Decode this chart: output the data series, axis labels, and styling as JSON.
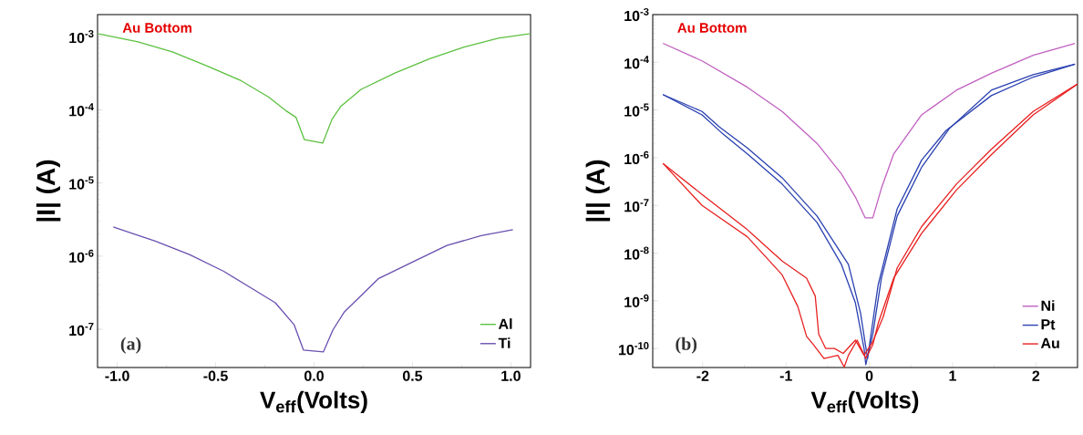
{
  "chart_data": [
    {
      "type": "line",
      "xlabel": "V$_{eff}$(Volts)",
      "ylabel": "|I| (A)",
      "log": "y",
      "legend": "bottom right",
      "grid": false,
      "marker": "none",
      "line_style": "solid",
      "xlim": [
        -1.1,
        1.1
      ],
      "ylim": [
        3e-08,
        0.002
      ],
      "xticks": [
        {
          "value": -1,
          "label": "-1.0"
        },
        -0.5,
        {
          "value": 0,
          "label": "0.0"
        },
        0.5,
        {
          "value": 1,
          "label": "1.0"
        }
      ],
      "yticks": [
        {
          "value": 1e-07,
          "label": "10$^{-7}$"
        },
        {
          "value": 1e-06,
          "label": "10$^{-6}$"
        },
        {
          "value": 1e-05,
          "label": "10$^{-5}$"
        },
        {
          "value": 0.0001,
          "label": "10$^{-4}$"
        },
        {
          "value": 0.001,
          "label": "10$^{-3}$"
        }
      ],
      "annotations": [
        "Au Bottom",
        "(a)"
      ],
      "series": [
        {
          "name": "Al",
          "color": "#5cc040",
          "x": [
            -1.099,
            -0.895,
            -0.72,
            -0.546,
            -0.371,
            -0.232,
            -0.145,
            -0.092,
            -0.049,
            0.044,
            0.091,
            0.134,
            0.239,
            0.413,
            0.588,
            0.762,
            0.936,
            1.099
          ],
          "values": [
            0.0011,
            0.00085,
            0.00062,
            0.0004,
            0.00025,
            0.00015,
            9.8e-05,
            7.9e-05,
            3.9e-05,
            3.5e-05,
            7.4e-05,
            0.00011,
            0.00019,
            0.00032,
            0.0005,
            0.00072,
            0.00095,
            0.0011
          ]
        },
        {
          "name": "Ti",
          "color": "#6a4fb0",
          "x": [
            -1.02,
            -0.807,
            -0.633,
            -0.459,
            -0.284,
            -0.197,
            -0.101,
            -0.054,
            0.047,
            0.096,
            0.152,
            0.326,
            0.5,
            0.675,
            0.849,
            1.01
          ],
          "values": [
            2.5e-06,
            1.6e-06,
            1.05e-06,
            6.2e-07,
            3.2e-07,
            2.3e-07,
            1.15e-07,
            5.2e-08,
            4.9e-08,
            9.8e-08,
            1.7e-07,
            4.9e-07,
            8.3e-07,
            1.4e-06,
            1.9e-06,
            2.3e-06
          ]
        }
      ]
    },
    {
      "type": "line",
      "xlabel": "V$_{eff}$(Volts)",
      "ylabel": "|I| (A)",
      "log": "y",
      "legend": "bottom right",
      "grid": false,
      "marker": "none",
      "line_style": "solid",
      "xlim": [
        -2.6,
        2.5
      ],
      "ylim": [
        4e-11,
        0.001
      ],
      "xticks": [
        -2,
        -1,
        0,
        1,
        2
      ],
      "yticks": [
        {
          "value": 1e-10,
          "label": "10$^{-10}$"
        },
        {
          "value": 1e-09,
          "label": "10$^{-9}$"
        },
        {
          "value": 1e-08,
          "label": "10$^{-8}$"
        },
        {
          "value": 1e-07,
          "label": "10$^{-7}$"
        },
        {
          "value": 1e-06,
          "label": "10$^{-6}$"
        },
        {
          "value": 1e-05,
          "label": "10$^{-5}$"
        },
        {
          "value": 0.0001,
          "label": "10$^{-4}$"
        },
        {
          "value": 0.001,
          "label": "10$^{-3}$"
        }
      ],
      "annotations": [
        "Au Bottom",
        "(b)"
      ],
      "series": [
        {
          "name": "Ni",
          "color": "#c060c0",
          "x": [
            -2.477,
            -2.008,
            -1.464,
            -1.046,
            -0.628,
            -0.335,
            -0.167,
            -0.05,
            0.042,
            0.146,
            0.293,
            0.628,
            1.046,
            1.464,
            1.967,
            2.469
          ],
          "values": [
            0.00025,
            0.000107,
            3e-05,
            9.3e-06,
            2e-06,
            4.6e-07,
            1.5e-07,
            5.5e-08,
            5.5e-08,
            2.3e-07,
            1.2e-06,
            7.9e-06,
            2.6e-05,
            5.9e-05,
            0.00014,
            0.00025
          ]
        },
        {
          "name": "Pt",
          "color": "#2a40b0",
          "x": [
            -2.477,
            -2.008,
            -1.778,
            -1.464,
            -1.046,
            -0.628,
            -0.335,
            -0.167,
            -0.063,
            -0.042,
            0.042,
            0.146,
            0.335,
            0.628,
            0.962,
            1.464,
            1.967,
            2.469
          ],
          "values": [
            2.1e-05,
            7.9e-06,
            3.4e-06,
            1.2e-06,
            2.8e-07,
            4.4e-08,
            5.8e-09,
            9.1e-10,
            1e-10,
            4.6e-11,
            2e-10,
            3e-09,
            6e-08,
            6.3e-07,
            4.1e-06,
            2.6e-05,
            5.5e-05,
            9.1e-05
          ]
        },
        {
          "color": "#2a40b0",
          "x": [
            -2.477,
            -2.008,
            -1.799,
            -1.464,
            -1.046,
            -0.628,
            -0.251,
            -0.105,
            -0.021,
            0.105,
            0.335,
            0.628,
            0.92,
            1.464,
            1.967,
            2.469
          ],
          "values": [
            2.1e-05,
            9.3e-06,
            4.4e-06,
            1.6e-06,
            3.8e-07,
            6e-08,
            5.8e-09,
            5.5e-10,
            6.2e-11,
            2.1e-09,
            8.5e-08,
            8.9e-07,
            3.7e-06,
            2e-05,
            4.9e-05,
            9.1e-05
          ]
        },
        {
          "name": "Au",
          "color": "#e82020",
          "x": [
            -2.477,
            -2.008,
            -1.464,
            -1.046,
            -0.753,
            -0.649,
            -0.607,
            -0.523,
            -0.418,
            -0.314,
            -0.167,
            -0.063,
            0.042,
            0.167,
            0.335,
            0.628,
            1.046,
            1.464,
            1.967,
            2.5
          ],
          "values": [
            7.6e-07,
            1.7e-07,
            3.1e-08,
            6.8e-09,
            3e-09,
            1.26e-09,
            2e-10,
            1e-10,
            1e-10,
            7.9e-11,
            1.5e-10,
            7.2e-11,
            1.4e-10,
            4.6e-10,
            4.9e-09,
            3.6e-08,
            2.8e-07,
            1.5e-06,
            9.3e-06,
            3.5e-05
          ]
        },
        {
          "color": "#e82020",
          "x": [
            -2.477,
            -2.008,
            -1.464,
            -1.046,
            -0.858,
            -0.753,
            -0.669,
            -0.544,
            -0.377,
            -0.301,
            -0.251,
            -0.146,
            -0.042,
            0.042,
            0.105,
            0.293,
            0.628,
            1.046,
            1.464,
            1.967,
            2.5
          ],
          "values": [
            7.6e-07,
            1e-07,
            2.2e-08,
            3.5e-09,
            7.6e-10,
            1.8e-10,
            1.2e-10,
            6.2e-11,
            7.2e-11,
            4.1e-11,
            7.2e-11,
            1.5e-10,
            6.2e-11,
            1.2e-10,
            3.3e-10,
            3e-09,
            2.6e-08,
            2.1e-07,
            1.15e-06,
            7.9e-06,
            3.5e-05
          ]
        }
      ]
    }
  ]
}
